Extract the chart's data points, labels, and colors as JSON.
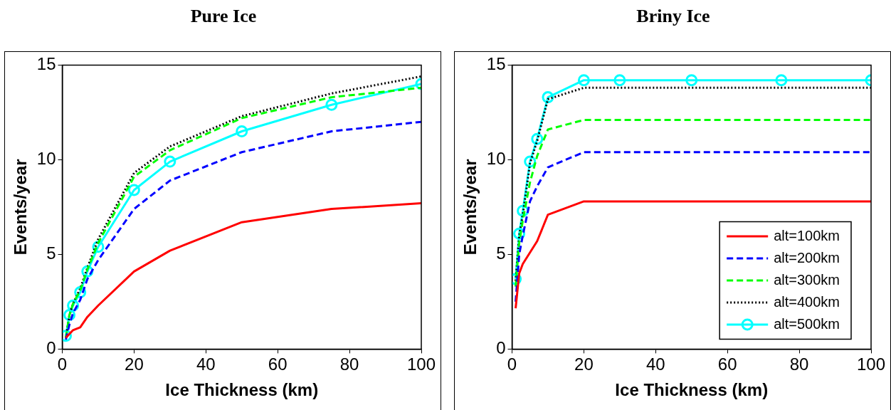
{
  "chart_data": [
    {
      "type": "line",
      "title": "Pure Ice",
      "xlabel": "Ice Thickness (km)",
      "ylabel": "Events/year",
      "x": [
        1,
        2,
        3,
        5,
        7,
        10,
        20,
        30,
        50,
        75,
        100
      ],
      "xlim": [
        0,
        100
      ],
      "xticks": [
        0,
        20,
        40,
        60,
        80,
        100
      ],
      "ylim": [
        0,
        15
      ],
      "yticks": [
        0,
        5,
        10,
        15
      ],
      "grid": false,
      "legend": false,
      "series": [
        {
          "color": "#ff0000",
          "line_style": "solid",
          "marker": "none",
          "values": [
            0.6,
            0.8,
            1.0,
            1.15,
            1.7,
            2.3,
            4.1,
            5.2,
            6.7,
            7.4,
            7.7
          ]
        },
        {
          "color": "#0000ff",
          "line_style": "dashed",
          "marker": "none",
          "values": [
            0.5,
            1.3,
            1.9,
            2.6,
            3.7,
            4.7,
            7.4,
            8.9,
            10.4,
            11.5,
            12.0
          ]
        },
        {
          "color": "#00ff00",
          "line_style": "dashed",
          "marker": "none",
          "values": [
            0.6,
            1.8,
            2.4,
            3.1,
            4.2,
            5.6,
            9.1,
            10.5,
            12.2,
            13.3,
            13.8
          ]
        },
        {
          "color": "#000000",
          "line_style": "dotted",
          "marker": "none",
          "values": [
            0.6,
            1.8,
            2.4,
            3.2,
            4.3,
            5.8,
            9.3,
            10.7,
            12.3,
            13.5,
            14.4
          ]
        },
        {
          "color": "#00ffff",
          "line_style": "solid",
          "marker": "circle",
          "values": [
            0.7,
            1.8,
            2.3,
            3.0,
            4.1,
            5.4,
            8.4,
            9.9,
            11.5,
            12.9,
            14.0
          ]
        }
      ]
    },
    {
      "type": "line",
      "title": "Briny Ice",
      "xlabel": "Ice Thickness (km)",
      "ylabel": "Events/year",
      "x": [
        1,
        2,
        3,
        5,
        7,
        10,
        20,
        30,
        50,
        75,
        100
      ],
      "xlim": [
        0,
        100
      ],
      "xticks": [
        0,
        20,
        40,
        60,
        80,
        100
      ],
      "ylim": [
        0,
        15
      ],
      "yticks": [
        0,
        5,
        10,
        15
      ],
      "grid": false,
      "legend": "bottom right",
      "series": [
        {
          "name": "alt=100km",
          "color": "#ff0000",
          "line_style": "solid",
          "marker": "none",
          "values": [
            2.15,
            4.0,
            4.5,
            5.1,
            5.7,
            7.1,
            7.8,
            7.8,
            7.8,
            7.8,
            7.8
          ]
        },
        {
          "name": "alt=200km",
          "color": "#0000ff",
          "line_style": "dashed",
          "marker": "none",
          "values": [
            2.5,
            5.0,
            6.0,
            7.8,
            8.6,
            9.6,
            10.4,
            10.4,
            10.4,
            10.4,
            10.4
          ]
        },
        {
          "name": "alt=300km",
          "color": "#00ff00",
          "line_style": "dashed",
          "marker": "none",
          "values": [
            3.3,
            5.6,
            6.8,
            8.8,
            10.2,
            11.6,
            12.1,
            12.1,
            12.1,
            12.1,
            12.1
          ]
        },
        {
          "name": "alt=400km",
          "color": "#000000",
          "line_style": "dotted",
          "marker": "none",
          "values": [
            3.6,
            6.0,
            7.1,
            9.8,
            11.0,
            13.2,
            13.8,
            13.8,
            13.8,
            13.8,
            13.8
          ]
        },
        {
          "name": "alt=500km",
          "color": "#00ffff",
          "line_style": "solid",
          "marker": "circle",
          "values": [
            3.7,
            6.1,
            7.3,
            9.9,
            11.1,
            13.3,
            14.2,
            14.2,
            14.2,
            14.2,
            14.2
          ]
        }
      ]
    }
  ]
}
